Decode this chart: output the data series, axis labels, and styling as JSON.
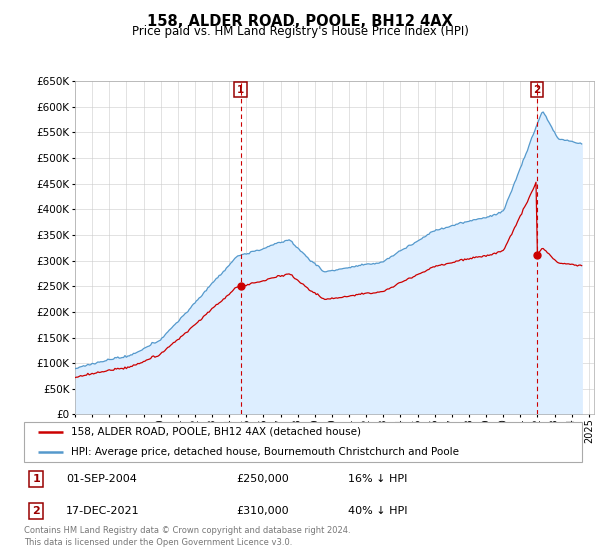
{
  "title": "158, ALDER ROAD, POOLE, BH12 4AX",
  "subtitle": "Price paid vs. HM Land Registry's House Price Index (HPI)",
  "legend_line1": "158, ALDER ROAD, POOLE, BH12 4AX (detached house)",
  "legend_line2": "HPI: Average price, detached house, Bournemouth Christchurch and Poole",
  "annotation1": {
    "num": "1",
    "date": "01-SEP-2004",
    "price": "£250,000",
    "pct": "16% ↓ HPI"
  },
  "annotation2": {
    "num": "2",
    "date": "17-DEC-2021",
    "price": "£310,000",
    "pct": "40% ↓ HPI"
  },
  "footer": "Contains HM Land Registry data © Crown copyright and database right 2024.\nThis data is licensed under the Open Government Licence v3.0.",
  "hpi_color": "#5599cc",
  "hpi_fill_color": "#ddeeff",
  "price_color": "#cc0000",
  "sale1_price": 250000,
  "sale2_price": 310000,
  "sale1_year": 2004.667,
  "sale2_year": 2021.958,
  "ylim_min": 0,
  "ylim_max": 650000,
  "x_start_year": 1995,
  "x_end_year": 2025
}
